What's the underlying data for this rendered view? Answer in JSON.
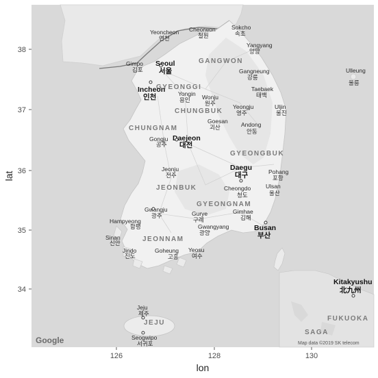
{
  "axes": {
    "xlabel": "lon",
    "ylabel": "lat",
    "x_ticks": [
      "126",
      "128",
      "130"
    ],
    "y_ticks": [
      "38",
      "37",
      "36",
      "35",
      "34"
    ]
  },
  "map": {
    "provider_logo": "Google",
    "attribution": "Map data ©2019 SK telecom",
    "regions": [
      "GANGWON",
      "GYEONGGI",
      "CHUNGBUK",
      "CHUNGNAM",
      "GYEONGBUK",
      "JEONBUK",
      "GYEONGNAM",
      "JEONNAM",
      "JEJU",
      "FUKUOKA",
      "SAGA"
    ],
    "cities": [
      {
        "en": "Yeoncheon",
        "ko": "연천"
      },
      {
        "en": "Cheorwon",
        "ko": "철원"
      },
      {
        "en": "Sokcho",
        "ko": "속초"
      },
      {
        "en": "Yangyang",
        "ko": "양양"
      },
      {
        "en": "Gimpo",
        "ko": "김포"
      },
      {
        "en": "Seoul",
        "ko": "서울"
      },
      {
        "en": "Gangneung",
        "ko": "강릉"
      },
      {
        "en": "Ulleung",
        "ko": "울릉"
      },
      {
        "en": "Incheon",
        "ko": "인천"
      },
      {
        "en": "Yongin",
        "ko": "용인"
      },
      {
        "en": "Wonju",
        "ko": "원주"
      },
      {
        "en": "Taebaek",
        "ko": "태백"
      },
      {
        "en": "Yeongju",
        "ko": "영주"
      },
      {
        "en": "Uljin",
        "ko": "울진"
      },
      {
        "en": "Goesan",
        "ko": "괴산"
      },
      {
        "en": "Andong",
        "ko": "안동"
      },
      {
        "en": "Gongju",
        "ko": "공주"
      },
      {
        "en": "Daejeon",
        "ko": "대전"
      },
      {
        "en": "Daegu",
        "ko": "대구"
      },
      {
        "en": "Pohang",
        "ko": "포항"
      },
      {
        "en": "Jeonju",
        "ko": "전주"
      },
      {
        "en": "Cheongdo",
        "ko": "청도"
      },
      {
        "en": "Ulsan",
        "ko": "울산"
      },
      {
        "en": "Gwangju",
        "ko": "광주"
      },
      {
        "en": "Gurye",
        "ko": "구례"
      },
      {
        "en": "Gimhae",
        "ko": "김해"
      },
      {
        "en": "Hampyeong",
        "ko": "함평"
      },
      {
        "en": "Gwangyang",
        "ko": "광양"
      },
      {
        "en": "Busan",
        "ko": "부산"
      },
      {
        "en": "Sinan",
        "ko": "신안"
      },
      {
        "en": "Jindo",
        "ko": "진도"
      },
      {
        "en": "Goheung",
        "ko": "고흥"
      },
      {
        "en": "Yeosu",
        "ko": "여수"
      },
      {
        "en": "Kitakyushu",
        "ko": "北九州"
      },
      {
        "en": "Jeju",
        "ko": "제주"
      },
      {
        "en": "Seogwipo",
        "ko": "서귀포"
      }
    ]
  }
}
